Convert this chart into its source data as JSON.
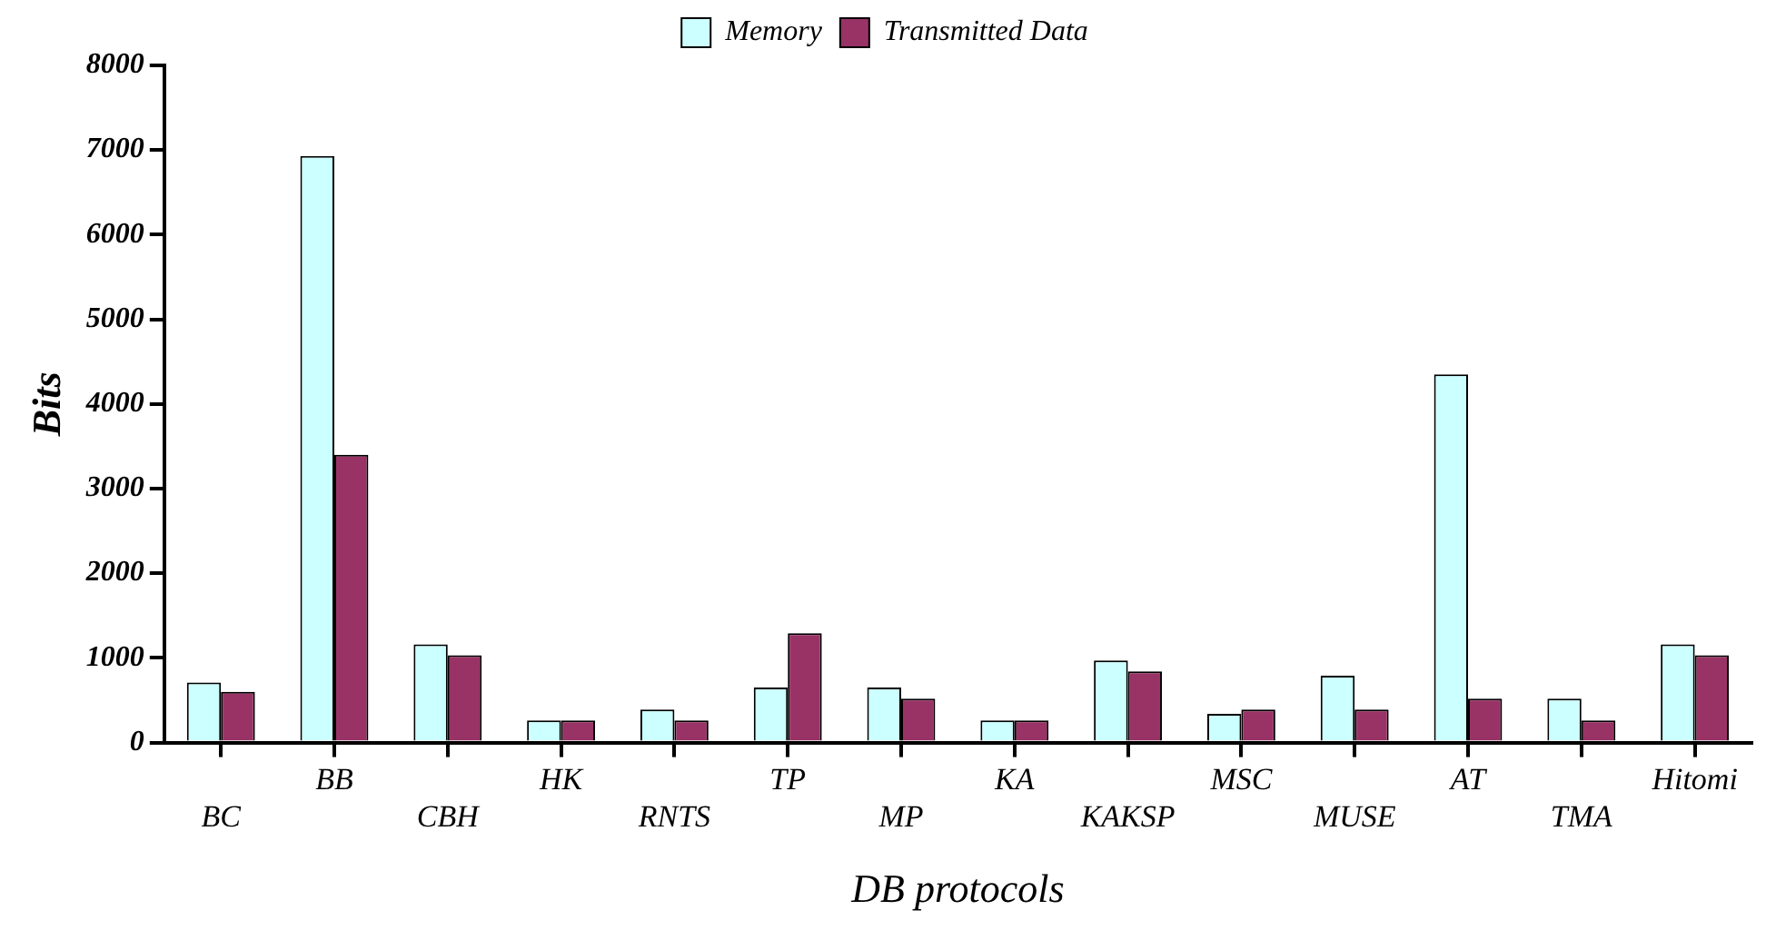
{
  "chart_data": {
    "type": "bar",
    "xlabel": "DB protocols",
    "ylabel": "Bits",
    "categories": [
      "BC",
      "BB",
      "CBH",
      "HK",
      "RNTS",
      "TP",
      "MP",
      "KA",
      "KAKSP",
      "MSC",
      "MUSE",
      "AT",
      "TMA",
      "Hitomi"
    ],
    "series": [
      {
        "name": "Memory",
        "color": "#ccffff",
        "values": [
          710,
          6930,
          1160,
          260,
          390,
          650,
          650,
          260,
          970,
          340,
          790,
          4350,
          520,
          1160
        ]
      },
      {
        "name": "Transmitted Data",
        "color": "#993366",
        "values": [
          600,
          3400,
          1030,
          260,
          260,
          1290,
          520,
          260,
          840,
          390,
          390,
          520,
          260,
          1030
        ]
      }
    ],
    "ylim": [
      0,
      8000
    ],
    "yticks": [
      0,
      1000,
      2000,
      3000,
      4000,
      5000,
      6000,
      7000,
      8000
    ],
    "grid": false,
    "legend": "top"
  }
}
